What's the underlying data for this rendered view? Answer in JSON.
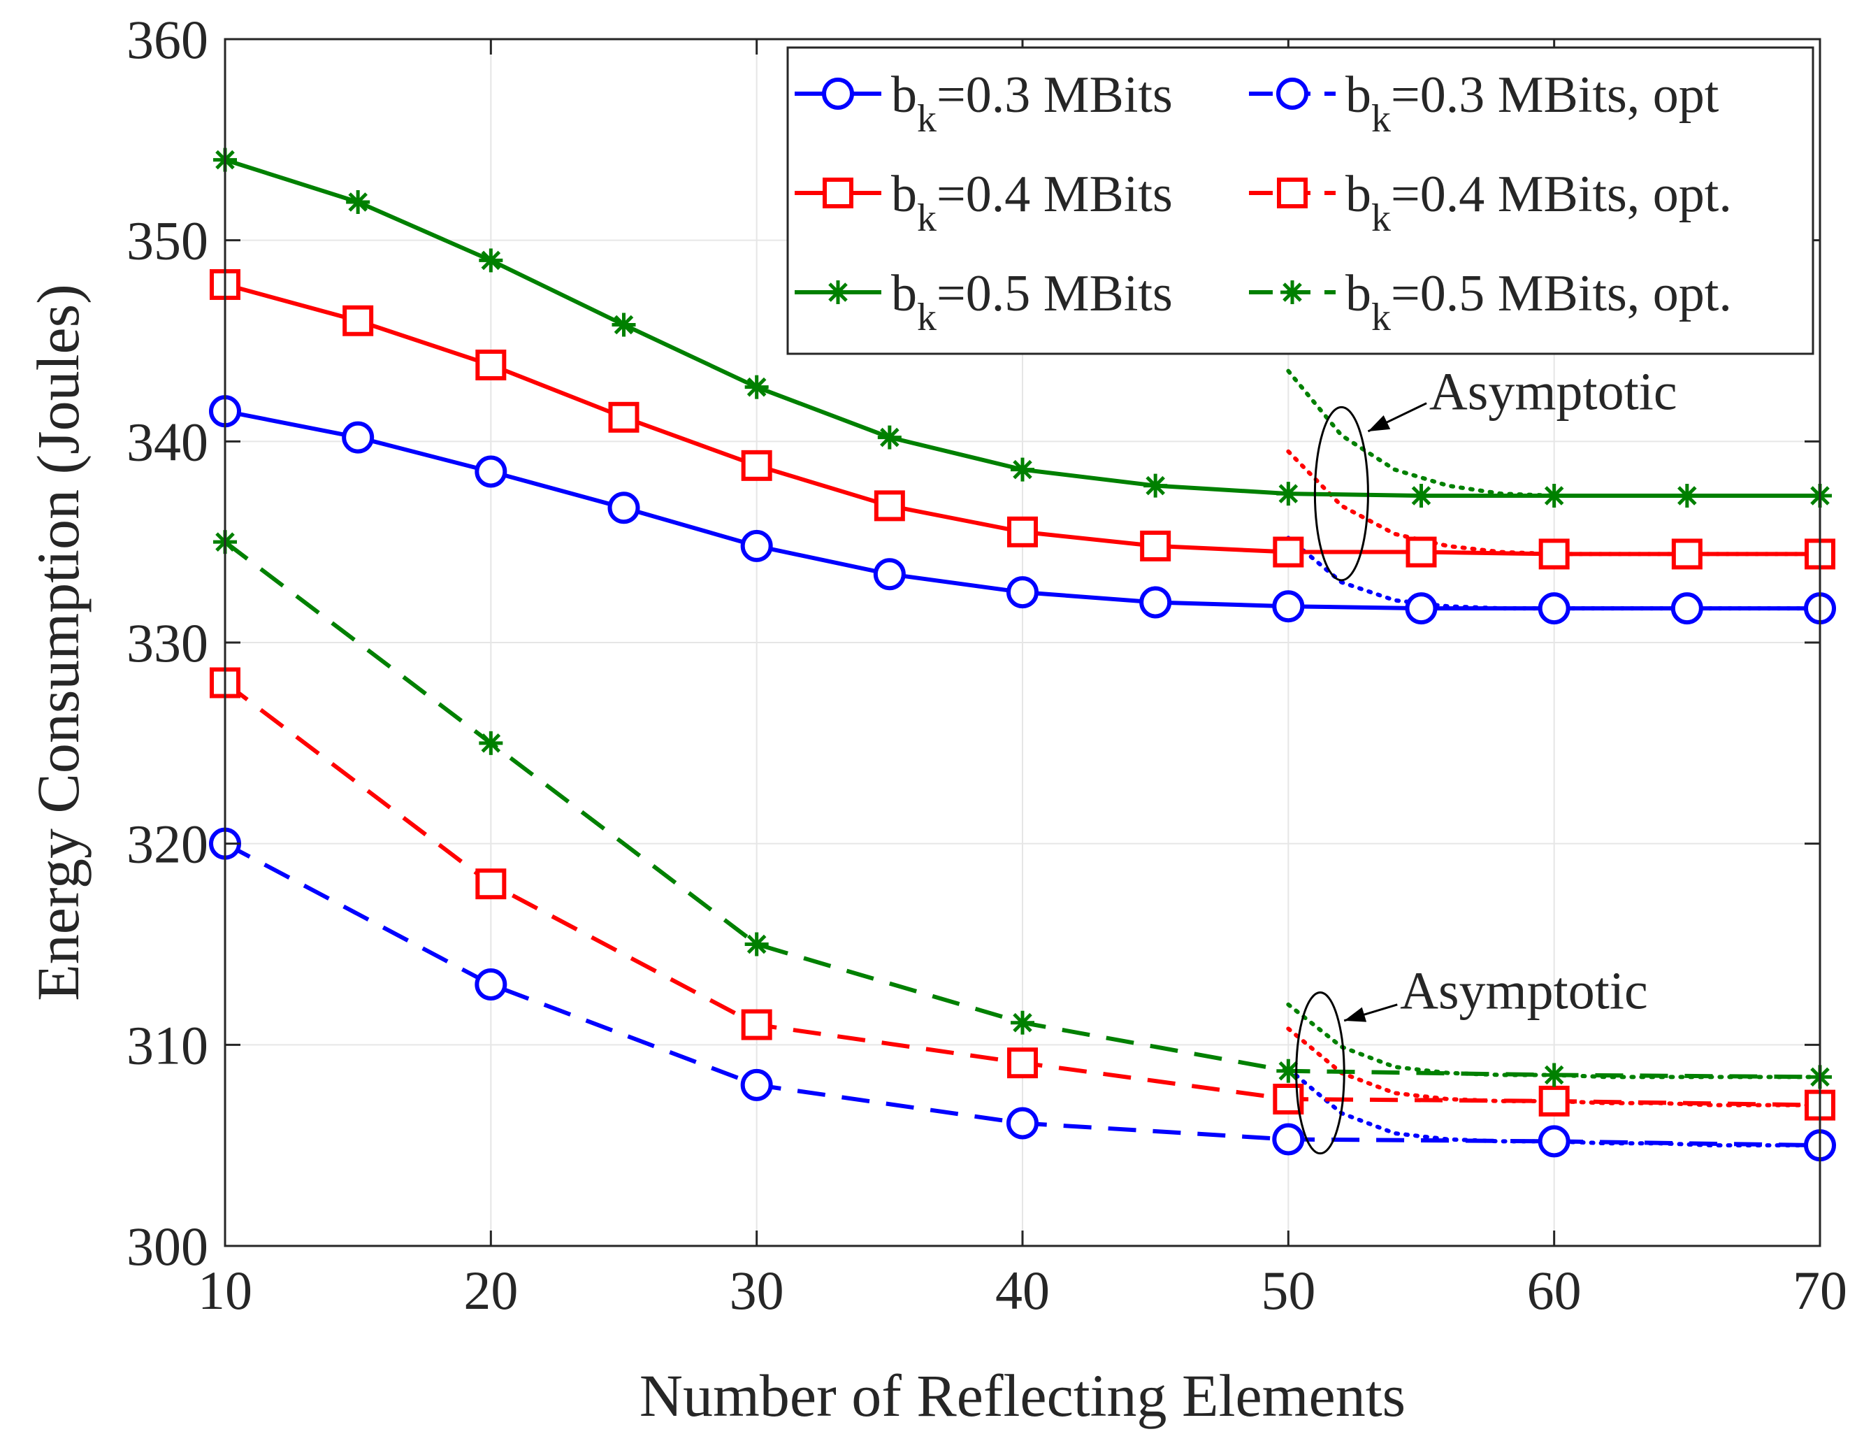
{
  "chart_data": {
    "type": "line",
    "xlabel": "Number of Reflecting Elements",
    "ylabel": "Energy Consumption (Joules)",
    "xlim": [
      10,
      70
    ],
    "ylim": [
      300,
      360
    ],
    "xticks": [
      10,
      20,
      30,
      40,
      50,
      60,
      70
    ],
    "yticks": [
      300,
      310,
      320,
      330,
      340,
      350,
      360
    ],
    "grid": true,
    "legend_position": "top-right",
    "series": [
      {
        "name": "b_k=0.3 MBits",
        "legend_main": "b",
        "legend_sub": "k",
        "legend_rest": "=0.3 MBits",
        "color": "#0000ff",
        "marker": "circle",
        "dash": "solid",
        "x": [
          10,
          15,
          20,
          25,
          30,
          35,
          40,
          45,
          50,
          55,
          60,
          65,
          70
        ],
        "values": [
          341.5,
          340.2,
          338.5,
          336.7,
          334.8,
          333.4,
          332.5,
          332.0,
          331.8,
          331.7,
          331.7,
          331.7,
          331.7
        ]
      },
      {
        "name": "b_k=0.3 MBits, opt",
        "legend_main": "b",
        "legend_sub": "k",
        "legend_rest": "=0.3 MBits, opt",
        "color": "#0000ff",
        "marker": "circle",
        "dash": "dashed",
        "x": [
          10,
          20,
          30,
          40,
          50,
          60,
          70
        ],
        "values": [
          320.0,
          313.0,
          308.0,
          306.1,
          305.3,
          305.2,
          305.0
        ]
      },
      {
        "name": "b_k=0.4 MBits",
        "legend_main": "b",
        "legend_sub": "k",
        "legend_rest": "=0.4 MBits",
        "color": "#ff0000",
        "marker": "square",
        "dash": "solid",
        "x": [
          10,
          15,
          20,
          25,
          30,
          35,
          40,
          45,
          50,
          55,
          60,
          65,
          70
        ],
        "values": [
          347.8,
          346.0,
          343.8,
          341.2,
          338.8,
          336.8,
          335.5,
          334.8,
          334.5,
          334.5,
          334.4,
          334.4,
          334.4
        ]
      },
      {
        "name": "b_k=0.4 MBits, opt.",
        "legend_main": "b",
        "legend_sub": "k",
        "legend_rest": "=0.4 MBits, opt.",
        "color": "#ff0000",
        "marker": "square",
        "dash": "dashed",
        "x": [
          10,
          20,
          30,
          40,
          50,
          60,
          70
        ],
        "values": [
          328.0,
          318.0,
          311.0,
          309.1,
          307.3,
          307.2,
          307.0
        ]
      },
      {
        "name": "b_k=0.5 MBits",
        "legend_main": "b",
        "legend_sub": "k",
        "legend_rest": "=0.5 MBits",
        "color": "#008000",
        "marker": "asterisk",
        "dash": "solid",
        "x": [
          10,
          15,
          20,
          25,
          30,
          35,
          40,
          45,
          50,
          55,
          60,
          65,
          70
        ],
        "values": [
          354.0,
          351.9,
          349.0,
          345.8,
          342.7,
          340.2,
          338.6,
          337.8,
          337.4,
          337.3,
          337.3,
          337.3,
          337.3
        ]
      },
      {
        "name": "b_k=0.5 MBits, opt.",
        "legend_main": "b",
        "legend_sub": "k",
        "legend_rest": "=0.5 MBits, opt.",
        "color": "#008000",
        "marker": "asterisk",
        "dash": "dashed",
        "x": [
          10,
          20,
          30,
          40,
          50,
          60,
          70
        ],
        "values": [
          335.0,
          325.0,
          315.0,
          311.1,
          308.7,
          308.5,
          308.4
        ]
      }
    ],
    "asymptotic_curves": [
      {
        "group": "upper",
        "color": "#008000",
        "x": [
          50,
          52,
          54,
          56,
          58,
          60,
          62,
          64,
          66,
          68,
          70
        ],
        "values": [
          343.5,
          340.3,
          338.6,
          337.8,
          337.4,
          337.3,
          337.3,
          337.3,
          337.3,
          337.3,
          337.3
        ]
      },
      {
        "group": "upper",
        "color": "#ff0000",
        "x": [
          50,
          52,
          54,
          56,
          58,
          60,
          62,
          64,
          66,
          68,
          70
        ],
        "values": [
          339.5,
          336.8,
          335.4,
          334.8,
          334.5,
          334.4,
          334.4,
          334.4,
          334.4,
          334.4,
          334.4
        ]
      },
      {
        "group": "upper",
        "color": "#0000ff",
        "x": [
          50,
          52,
          54,
          56,
          58,
          60,
          62,
          64,
          66,
          68,
          70
        ],
        "values": [
          335.2,
          333.0,
          332.1,
          331.8,
          331.7,
          331.7,
          331.7,
          331.7,
          331.7,
          331.7,
          331.7
        ]
      },
      {
        "group": "lower",
        "color": "#008000",
        "x": [
          50,
          52,
          54,
          56,
          58,
          60,
          62,
          64,
          66,
          68,
          70
        ],
        "values": [
          312.0,
          309.9,
          308.9,
          308.6,
          308.5,
          308.5,
          308.4,
          308.4,
          308.4,
          308.4,
          308.4
        ]
      },
      {
        "group": "lower",
        "color": "#ff0000",
        "x": [
          50,
          52,
          54,
          56,
          58,
          60,
          62,
          64,
          66,
          68,
          70
        ],
        "values": [
          310.8,
          308.6,
          307.6,
          307.3,
          307.2,
          307.2,
          307.1,
          307.1,
          307.0,
          307.0,
          307.0
        ]
      },
      {
        "group": "lower",
        "color": "#0000ff",
        "x": [
          50,
          52,
          54,
          56,
          58,
          60,
          62,
          64,
          66,
          68,
          70
        ],
        "values": [
          308.8,
          306.6,
          305.6,
          305.3,
          305.2,
          305.2,
          305.1,
          305.1,
          305.0,
          305.0,
          305.0
        ]
      }
    ],
    "annotations": [
      {
        "text": "Asymptotic",
        "ellipse_center": [
          52,
          337.4
        ],
        "ellipse_radius": [
          1.0,
          4.3
        ],
        "text_at": [
          55.3,
          341.6
        ],
        "arrow_from": [
          55.2,
          341.9
        ],
        "arrow_to": [
          53.0,
          340.5
        ]
      },
      {
        "text": "Asymptotic",
        "ellipse_center": [
          51.2,
          308.6
        ],
        "ellipse_radius": [
          0.9,
          4.0
        ],
        "text_at": [
          54.2,
          311.8
        ],
        "arrow_from": [
          54.1,
          312.0
        ],
        "arrow_to": [
          52.1,
          311.2
        ]
      }
    ]
  }
}
